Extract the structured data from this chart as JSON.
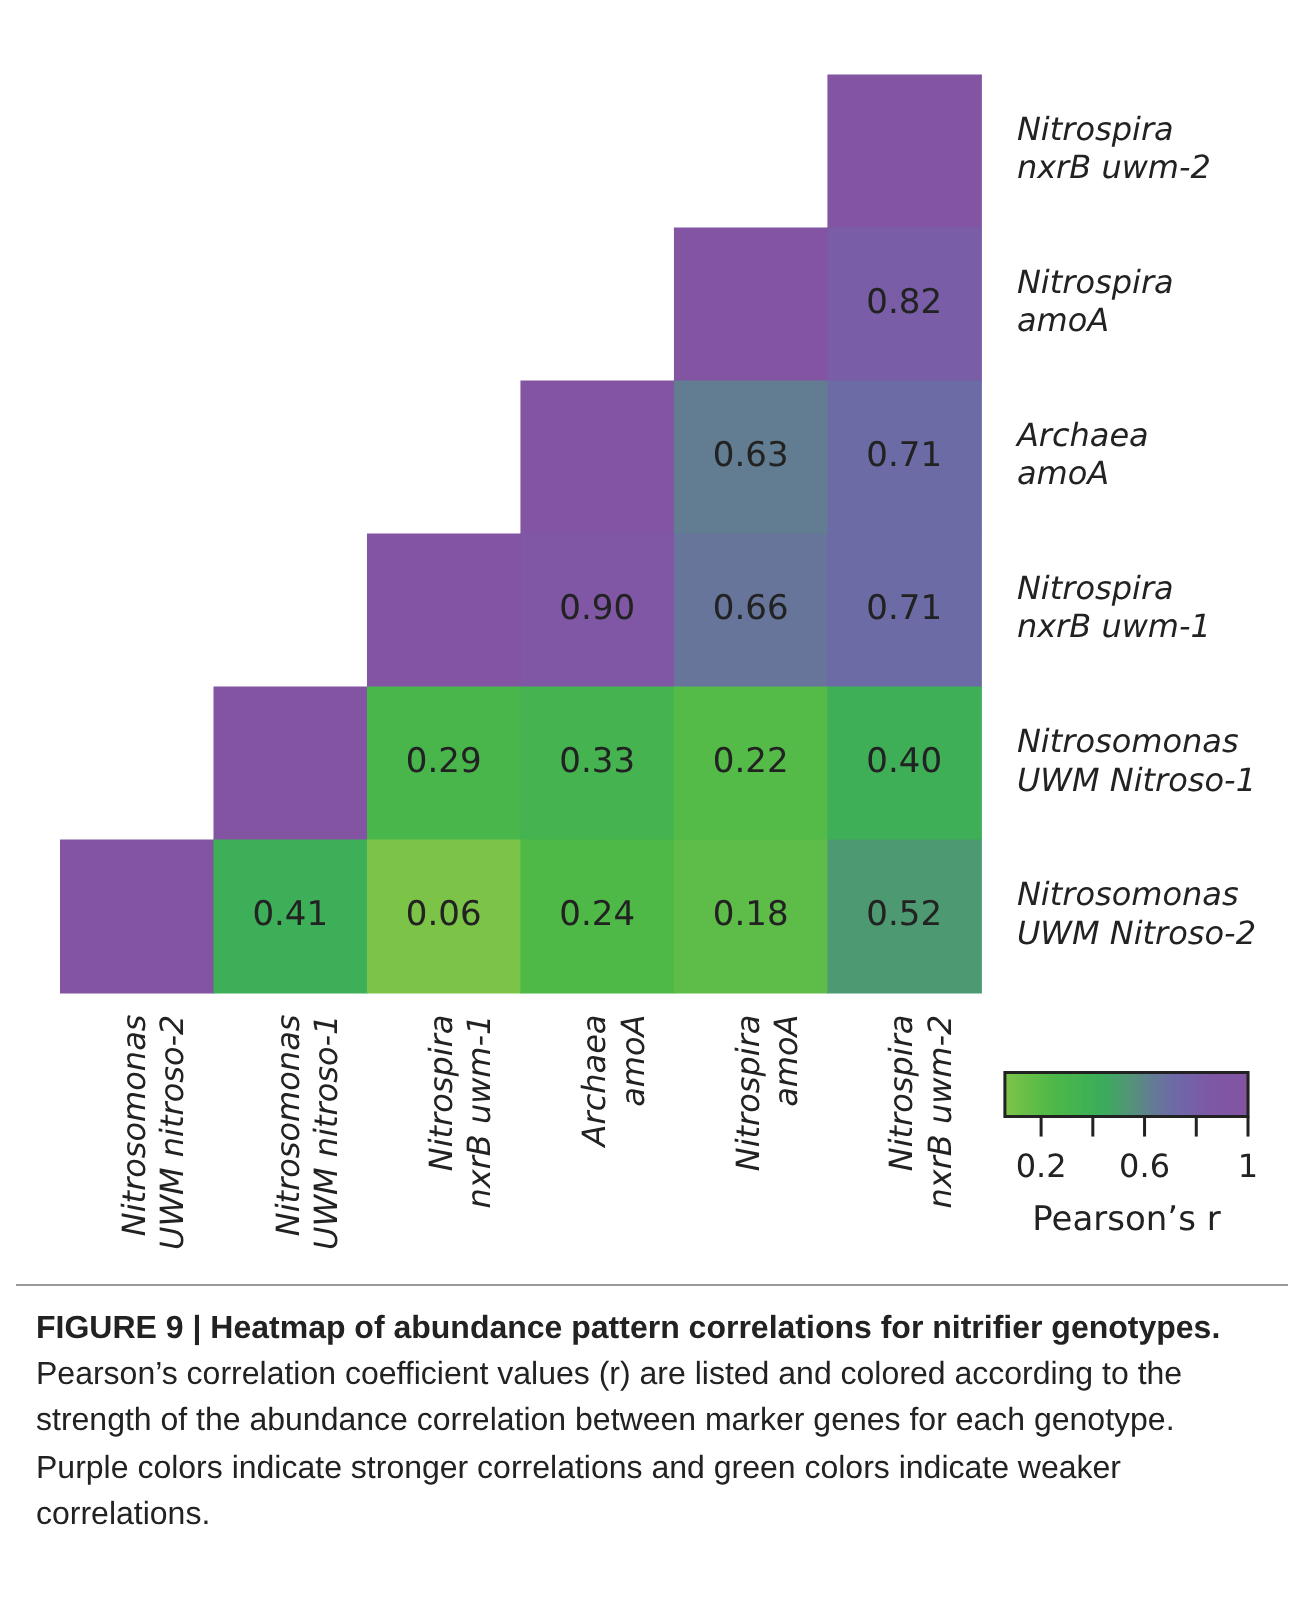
{
  "chart_data": {
    "type": "heatmap",
    "title": "FIGURE 9 | Heatmap of abundance pattern correlations for nitrifier genotypes.",
    "annotations": [
      "Pearson’s correlation coefficient values (r) are listed and colored according to the strength of the abundance correlation between marker genes for each genotype. Purple colors indicate stronger correlations and green colors indicate weaker correlations."
    ],
    "categories": [
      "Nitrosomonas UWM nitroso-2",
      "Nitrosomonas UWM nitroso-1",
      "Nitrospira nxrB uwm-1",
      "Archaea amoA",
      "Nitrospira amoA",
      "Nitrospira nxrB uwm-2"
    ],
    "y_categories": [
      "Nitrospira nxrB uwm-2",
      "Nitrospira amoA",
      "Archaea amoA",
      "Nitrospira nxrB uwm-1",
      "Nitrosomonas UWM Nitroso-1",
      "Nitrosomonas UWM Nitroso-2"
    ],
    "cells": [
      [
        null,
        null,
        null,
        null,
        null,
        1
      ],
      [
        null,
        null,
        null,
        null,
        1,
        0.82
      ],
      [
        null,
        null,
        null,
        1,
        0.63,
        0.71
      ],
      [
        null,
        null,
        1,
        0.9,
        0.66,
        0.71
      ],
      [
        null,
        1,
        0.29,
        0.33,
        0.22,
        0.4
      ],
      [
        1,
        0.41,
        0.06,
        0.24,
        0.18,
        0.52
      ]
    ],
    "cell_labels": [
      [
        null,
        null,
        null,
        null,
        null,
        null
      ],
      [
        null,
        null,
        null,
        null,
        null,
        "0.82"
      ],
      [
        null,
        null,
        null,
        null,
        "0.63",
        "0.71"
      ],
      [
        null,
        null,
        null,
        "0.90",
        "0.66",
        "0.71"
      ],
      [
        null,
        null,
        "0.29",
        "0.33",
        "0.22",
        "0.40"
      ],
      [
        null,
        "0.41",
        "0.06",
        "0.24",
        "0.18",
        "0.52"
      ]
    ],
    "clabel": "Pearson’s r",
    "clim": [
      0.06,
      1
    ],
    "cticks": [
      0.2,
      {
        "value": 0.4,
        "label": null
      },
      0.6,
      {
        "value": 0.8,
        "label": null
      },
      1
    ]
  }
}
